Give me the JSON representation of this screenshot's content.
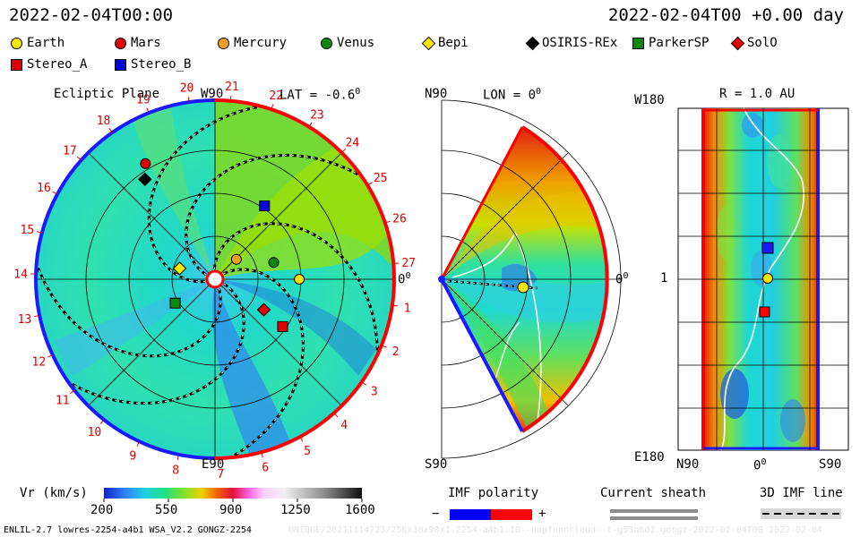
{
  "header": {
    "datetime_left": "2022-02-04T00:00",
    "datetime_right": "2022-02-04T00 +0.00 day"
  },
  "legend": [
    {
      "name": "Earth",
      "shape": "circle",
      "color": "#ffe600"
    },
    {
      "name": "Mars",
      "shape": "circle",
      "color": "#e00000"
    },
    {
      "name": "Mercury",
      "shape": "circle",
      "color": "#f0a020"
    },
    {
      "name": "Venus",
      "shape": "circle",
      "color": "#0a8a0a"
    },
    {
      "name": "Bepi",
      "shape": "diamond",
      "color": "#ffe600"
    },
    {
      "name": "OSIRIS-REx",
      "shape": "diamond",
      "color": "#000000"
    },
    {
      "name": "ParkerSP",
      "shape": "square",
      "color": "#0a8a0a"
    },
    {
      "name": "SolO",
      "shape": "diamond",
      "color": "#e00000"
    },
    {
      "name": "Stereo_A",
      "shape": "square",
      "color": "#e00000"
    },
    {
      "name": "Stereo_B",
      "shape": "square",
      "color": "#0000e0"
    }
  ],
  "ecliptic": {
    "title": "Ecliptic Plane",
    "top_label": "W90",
    "bottom_label": "E90",
    "right_label": "0",
    "lat_label": "LAT = -0.6",
    "carrington_ticks": [
      "1",
      "2",
      "3",
      "4",
      "5",
      "6",
      "7",
      "8",
      "9",
      "10",
      "11",
      "12",
      "13",
      "14",
      "15",
      "16",
      "17",
      "18",
      "19",
      "20",
      "21",
      "22",
      "23",
      "24",
      "25",
      "26",
      "27"
    ]
  },
  "meridional": {
    "top_label": "N90",
    "bottom_label": "S90",
    "lon_label": "LON = 0",
    "right_label": "0"
  },
  "map": {
    "r_label": "R = 1.0 AU",
    "top_left": "W180",
    "mid_left": "1",
    "bottom_left": "E180",
    "x_ticks": [
      "N90",
      "0",
      "S90"
    ]
  },
  "colorbar": {
    "label": "Vr (km/s)",
    "ticks": [
      "200",
      "550",
      "900",
      "1250",
      "1600"
    ]
  },
  "imf": {
    "label": "IMF polarity",
    "minus": "−",
    "plus": "+"
  },
  "sheath": {
    "label": "Current sheath"
  },
  "imf3d": {
    "label": "3D IMF line"
  },
  "footer": {
    "model": "ENLIL-2.7 lowres-2254-a4b1 WSA_V2.2 GONGZ-2254",
    "run": "UNIQUE/20211114723/256x30x90x1.2254-a4b1.10--nopfunncloud--t-g53q6d2.gongz-2022-02-04T00    2022-02-04"
  },
  "chart_data": {
    "type": "heatmap",
    "title": "Ecliptic Plane / Meridional / R = 1.0 AU Vr",
    "variable": "Vr (km/s)",
    "range": [
      200,
      1600
    ],
    "lat_deg": -0.6,
    "lon_deg": 0,
    "radius_au": 1.0,
    "bodies": [
      {
        "name": "Earth",
        "r_au": 0.98,
        "lon_deg": 0
      },
      {
        "name": "Mars",
        "r_au": 1.57,
        "lon_deg": 121
      },
      {
        "name": "Mercury",
        "r_au": 0.34,
        "lon_deg": 43
      },
      {
        "name": "Venus",
        "r_au": 0.71,
        "lon_deg": 16
      },
      {
        "name": "Bepi",
        "r_au": 0.43,
        "lon_deg": 163
      },
      {
        "name": "OSIRIS-REx",
        "r_au": 1.42,
        "lon_deg": 125
      },
      {
        "name": "ParkerSP",
        "r_au": 0.54,
        "lon_deg": 211
      },
      {
        "name": "SolO",
        "r_au": 0.67,
        "lon_deg": -32
      },
      {
        "name": "Stereo_A",
        "r_au": 0.96,
        "lon_deg": -35
      },
      {
        "name": "Stereo_B",
        "r_au": 1.03,
        "lon_deg": 56
      }
    ]
  }
}
